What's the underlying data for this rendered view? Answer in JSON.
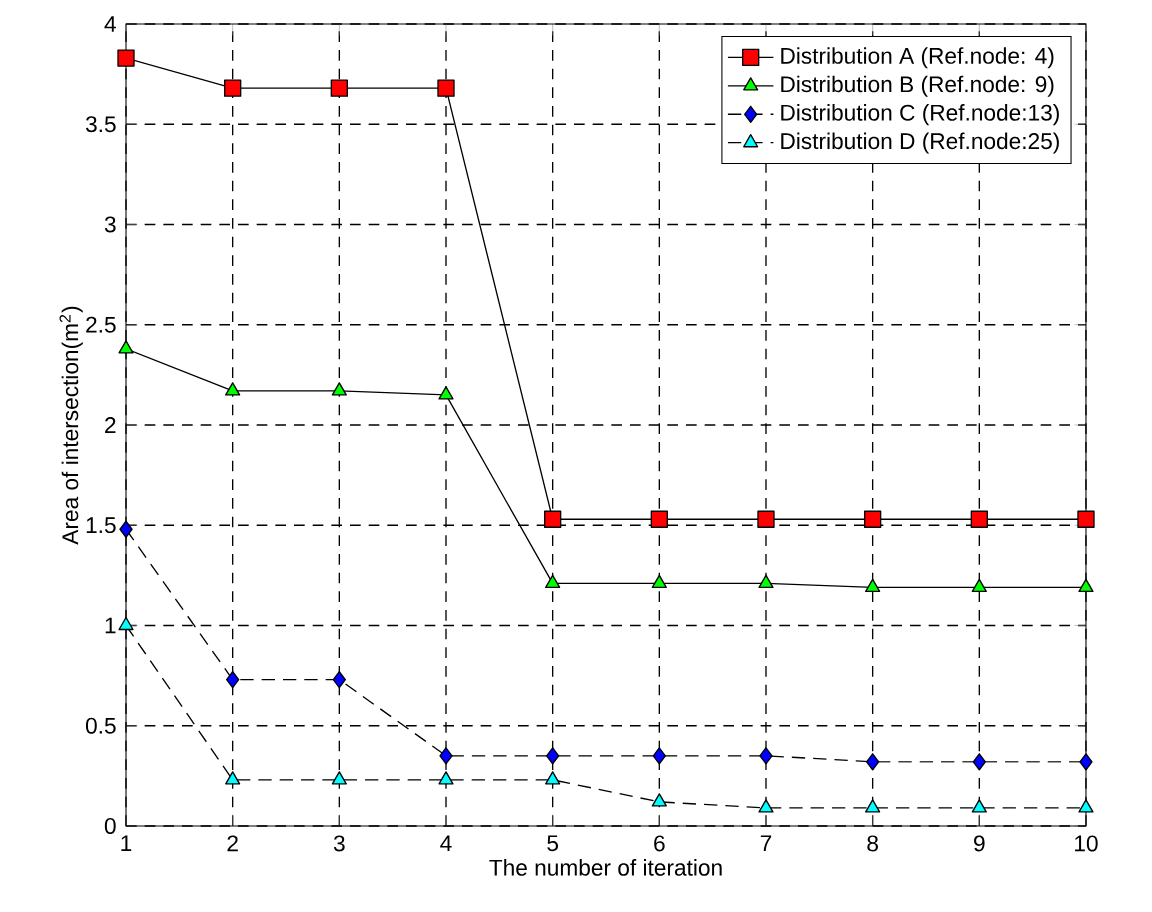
{
  "chart_data": {
    "type": "line",
    "xlabel": "The number of iteration",
    "ylabel": "Area of intersection(m$^{2}$)",
    "x": [
      1,
      2,
      3,
      4,
      5,
      6,
      7,
      8,
      9,
      10
    ],
    "xlim": [
      1,
      10
    ],
    "xticks": [
      1,
      2,
      3,
      4,
      5,
      6,
      7,
      8,
      9,
      10
    ],
    "ylim": [
      0,
      4
    ],
    "yticks": [
      0,
      0.5,
      1,
      1.5,
      2,
      2.5,
      3,
      3.5,
      4
    ],
    "grid": true,
    "legend": "top right",
    "series": [
      {
        "name": "Distribution A (Ref.node: 4)",
        "color": "#ff0000",
        "marker": "square",
        "line_style": "solid",
        "values": [
          3.83,
          3.68,
          3.68,
          3.68,
          1.53,
          1.53,
          1.53,
          1.53,
          1.53,
          1.53
        ]
      },
      {
        "name": "Distribution B (Ref.node: 9)",
        "color": "#00ff00",
        "marker": "triangle",
        "line_style": "solid",
        "values": [
          2.38,
          2.17,
          2.17,
          2.15,
          1.21,
          1.21,
          1.21,
          1.19,
          1.19,
          1.19
        ]
      },
      {
        "name": "Distribution C (Ref.node:13)",
        "color": "#0000ff",
        "marker": "diamond",
        "line_style": "dashed",
        "values": [
          1.48,
          0.73,
          0.73,
          0.35,
          0.35,
          0.35,
          0.35,
          0.32,
          0.32,
          0.32
        ]
      },
      {
        "name": "Distribution D (Ref.node:25)",
        "color": "#00ffff",
        "marker": "triangle",
        "line_style": "dashed",
        "values": [
          1.0,
          0.23,
          0.23,
          0.23,
          0.23,
          0.12,
          0.09,
          0.09,
          0.09,
          0.09
        ]
      }
    ]
  }
}
